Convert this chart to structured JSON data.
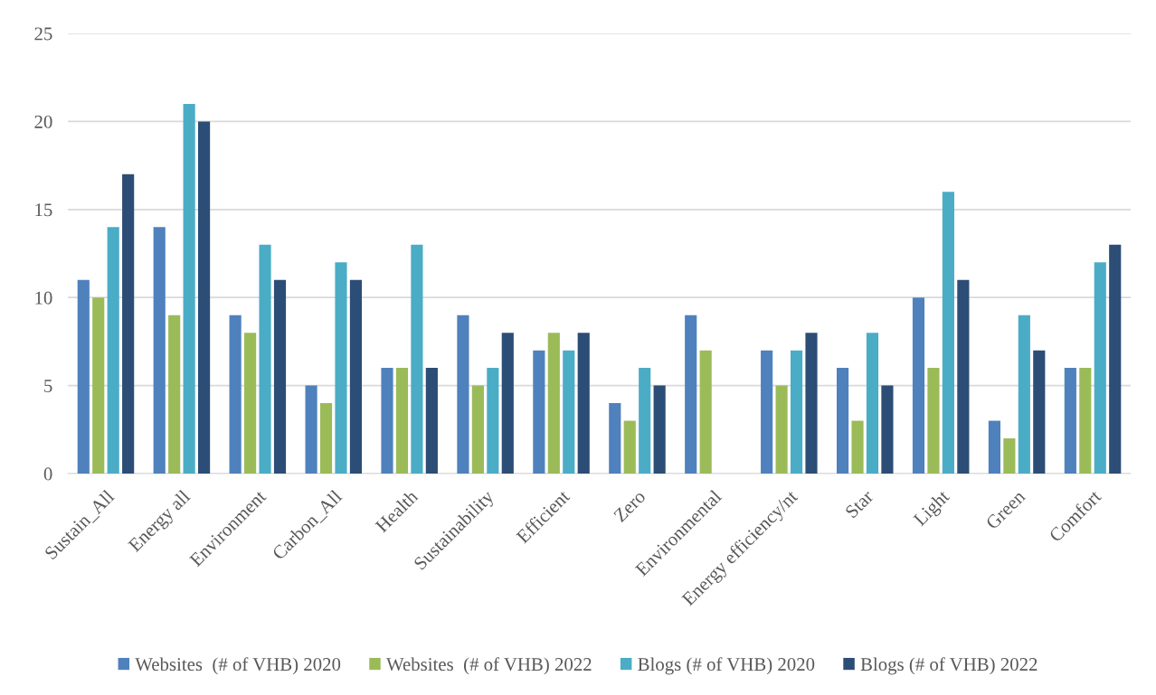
{
  "chart_data": {
    "type": "bar",
    "categories": [
      "Sustain_All",
      "Energy all",
      "Environment",
      "Carbon_All",
      "Health",
      "Sustainability",
      "Efficient",
      "Zero",
      "Environmental",
      "Energy efficiency/nt",
      "Star",
      "Light",
      "Green",
      "Comfort"
    ],
    "series": [
      {
        "name": "Websites  (# of VHB) 2020",
        "color": "#4f81bd",
        "values": [
          11,
          14,
          9,
          5,
          6,
          9,
          7,
          4,
          9,
          7,
          6,
          10,
          3,
          6
        ]
      },
      {
        "name": "Websites  (# of VHB) 2022",
        "color": "#9bbb59",
        "values": [
          10,
          9,
          8,
          4,
          6,
          5,
          8,
          3,
          7,
          5,
          3,
          6,
          2,
          6
        ]
      },
      {
        "name": "Blogs (# of VHB) 2020",
        "color": "#4bacc6",
        "values": [
          14,
          21,
          13,
          12,
          13,
          6,
          7,
          6,
          null,
          7,
          8,
          16,
          9,
          12
        ]
      },
      {
        "name": "Blogs (# of VHB) 2022",
        "color": "#2c4d75",
        "values": [
          17,
          20,
          11,
          11,
          6,
          8,
          8,
          5,
          null,
          8,
          5,
          11,
          7,
          13
        ]
      }
    ],
    "ylim": [
      0,
      25
    ],
    "yticks": [
      0,
      5,
      10,
      15,
      20,
      25
    ],
    "grid": "y",
    "legend": "bottom"
  }
}
